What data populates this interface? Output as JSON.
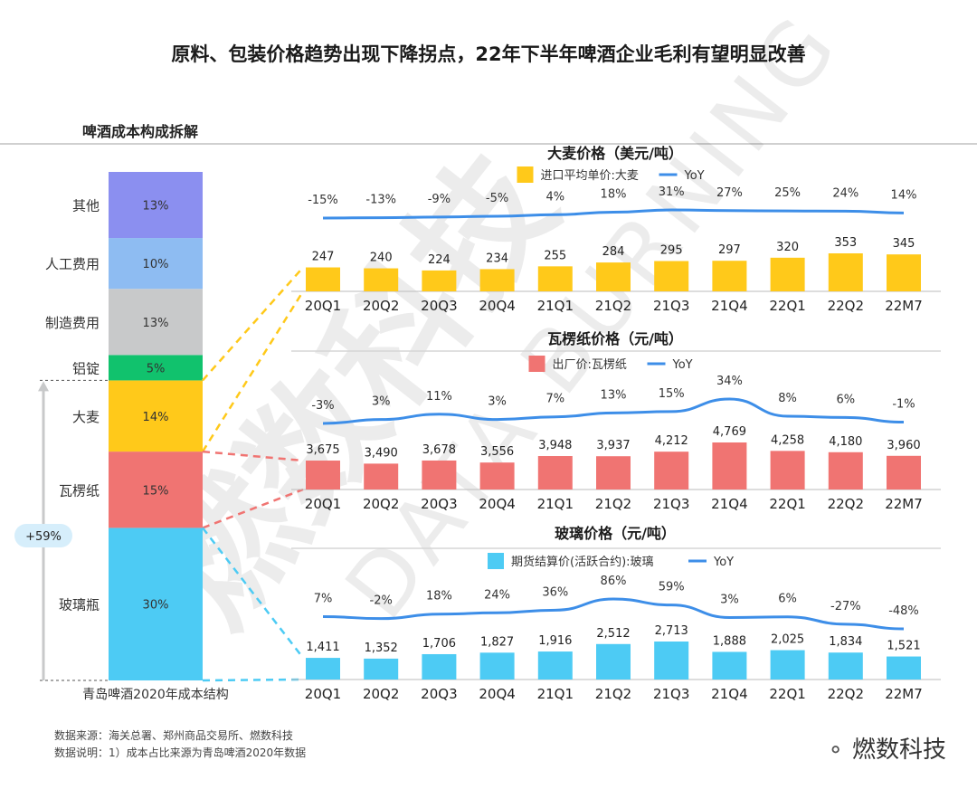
{
  "title": "原料、包装价格趋势出现下降拐点，22年下半年啤酒企业毛利有望明显改善",
  "left_panel": {
    "heading": "啤酒成本构成拆解",
    "caption": "青岛啤酒2020年成本结构",
    "growth_badge": "+59%"
  },
  "footnotes": {
    "source": "数据来源：海关总署、郑州商品交易所、燃数科技",
    "note": "数据说明：1）成本占比来源为青岛啤酒2020年数据"
  },
  "brand": "燃数科技",
  "watermark": "燃数科技 DATA BURNING",
  "colors": {
    "bar_yellow": "#FFC91A",
    "bar_red": "#F07472",
    "bar_blue": "#4DCBF4",
    "line_blue": "#3D8EE8",
    "seg_purple": "#8B8FF0",
    "seg_lightblue": "#8EBCF2",
    "seg_gray": "#C8C9CA",
    "seg_green": "#11C26D"
  },
  "chart_data": [
    {
      "type": "stacked-bar",
      "title": "啤酒成本构成拆解",
      "categories": [
        "青岛啤酒2020年成本结构"
      ],
      "segments": [
        {
          "name": "玻璃瓶",
          "value": 30,
          "label": "30%",
          "color": "#4DCBF4"
        },
        {
          "name": "瓦楞纸",
          "value": 15,
          "label": "15%",
          "color": "#F07472"
        },
        {
          "name": "大麦",
          "value": 14,
          "label": "14%",
          "color": "#FFC91A"
        },
        {
          "name": "铝锭",
          "value": 5,
          "label": "5%",
          "color": "#11C26D"
        },
        {
          "name": "制造费用",
          "value": 13,
          "label": "13%",
          "color": "#C8C9CA"
        },
        {
          "name": "人工费用",
          "value": 10,
          "label": "10%",
          "color": "#8EBCF2"
        },
        {
          "name": "其他",
          "value": 13,
          "label": "13%",
          "color": "#8B8FF0"
        }
      ]
    },
    {
      "type": "bar+line",
      "title": "大麦价格（美元/吨）",
      "categories": [
        "20Q1",
        "20Q2",
        "20Q3",
        "20Q4",
        "21Q1",
        "21Q2",
        "21Q3",
        "21Q4",
        "22Q1",
        "22Q2",
        "22M7"
      ],
      "series": [
        {
          "name": "进口平均单价:大麦",
          "type": "bar",
          "color": "#FFC91A",
          "values": [
            247,
            240,
            224,
            234,
            255,
            284,
            295,
            297,
            320,
            353,
            345
          ],
          "labels": [
            "247",
            "240",
            "224",
            "234",
            "255",
            "284",
            "295",
            "297",
            "320",
            "353",
            "345"
          ]
        },
        {
          "name": "YoY",
          "type": "line",
          "color": "#3D8EE8",
          "values": [
            -15,
            -13,
            -9,
            -5,
            4,
            18,
            31,
            27,
            25,
            24,
            14
          ],
          "labels": [
            "-15%",
            "-13%",
            "-9%",
            "-5%",
            "4%",
            "18%",
            "31%",
            "27%",
            "25%",
            "24%",
            "14%"
          ]
        }
      ]
    },
    {
      "type": "bar+line",
      "title": "瓦楞纸价格（元/吨）",
      "categories": [
        "20Q1",
        "20Q2",
        "20Q3",
        "20Q4",
        "21Q1",
        "21Q2",
        "21Q3",
        "21Q4",
        "22Q1",
        "22Q2",
        "22M7"
      ],
      "series": [
        {
          "name": "出厂价:瓦楞纸",
          "type": "bar",
          "color": "#F07472",
          "values": [
            3675,
            3490,
            3678,
            3556,
            3948,
            3937,
            4212,
            4769,
            4258,
            4180,
            3960
          ],
          "labels": [
            "3,675",
            "3,490",
            "3,678",
            "3,556",
            "3,948",
            "3,937",
            "4,212",
            "4,769",
            "4,258",
            "4,180",
            "3,960"
          ]
        },
        {
          "name": "YoY",
          "type": "line",
          "color": "#3D8EE8",
          "values": [
            -3,
            3,
            11,
            3,
            7,
            13,
            15,
            34,
            8,
            6,
            -1
          ],
          "labels": [
            "-3%",
            "3%",
            "11%",
            "3%",
            "7%",
            "13%",
            "15%",
            "34%",
            "8%",
            "6%",
            "-1%"
          ]
        }
      ]
    },
    {
      "type": "bar+line",
      "title": "玻璃价格（元/吨）",
      "categories": [
        "20Q1",
        "20Q2",
        "20Q3",
        "20Q4",
        "21Q1",
        "21Q2",
        "21Q3",
        "21Q4",
        "22Q1",
        "22Q2",
        "22M7"
      ],
      "series": [
        {
          "name": "期货结算价(活跃合约):玻璃",
          "type": "bar",
          "color": "#4DCBF4",
          "values": [
            1411,
            1352,
            1706,
            1827,
            1916,
            2512,
            2713,
            1888,
            2025,
            1834,
            1521
          ],
          "labels": [
            "1,411",
            "1,352",
            "1,706",
            "1,827",
            "1,916",
            "2,512",
            "2,713",
            "1,888",
            "2,025",
            "1,834",
            "1,521"
          ]
        },
        {
          "name": "YoY",
          "type": "line",
          "color": "#3D8EE8",
          "values": [
            7,
            -2,
            18,
            24,
            36,
            86,
            59,
            3,
            6,
            -27,
            -48
          ],
          "labels": [
            "7%",
            "-2%",
            "18%",
            "24%",
            "36%",
            "86%",
            "59%",
            "3%",
            "6%",
            "-27%",
            "-48%"
          ]
        }
      ]
    }
  ]
}
